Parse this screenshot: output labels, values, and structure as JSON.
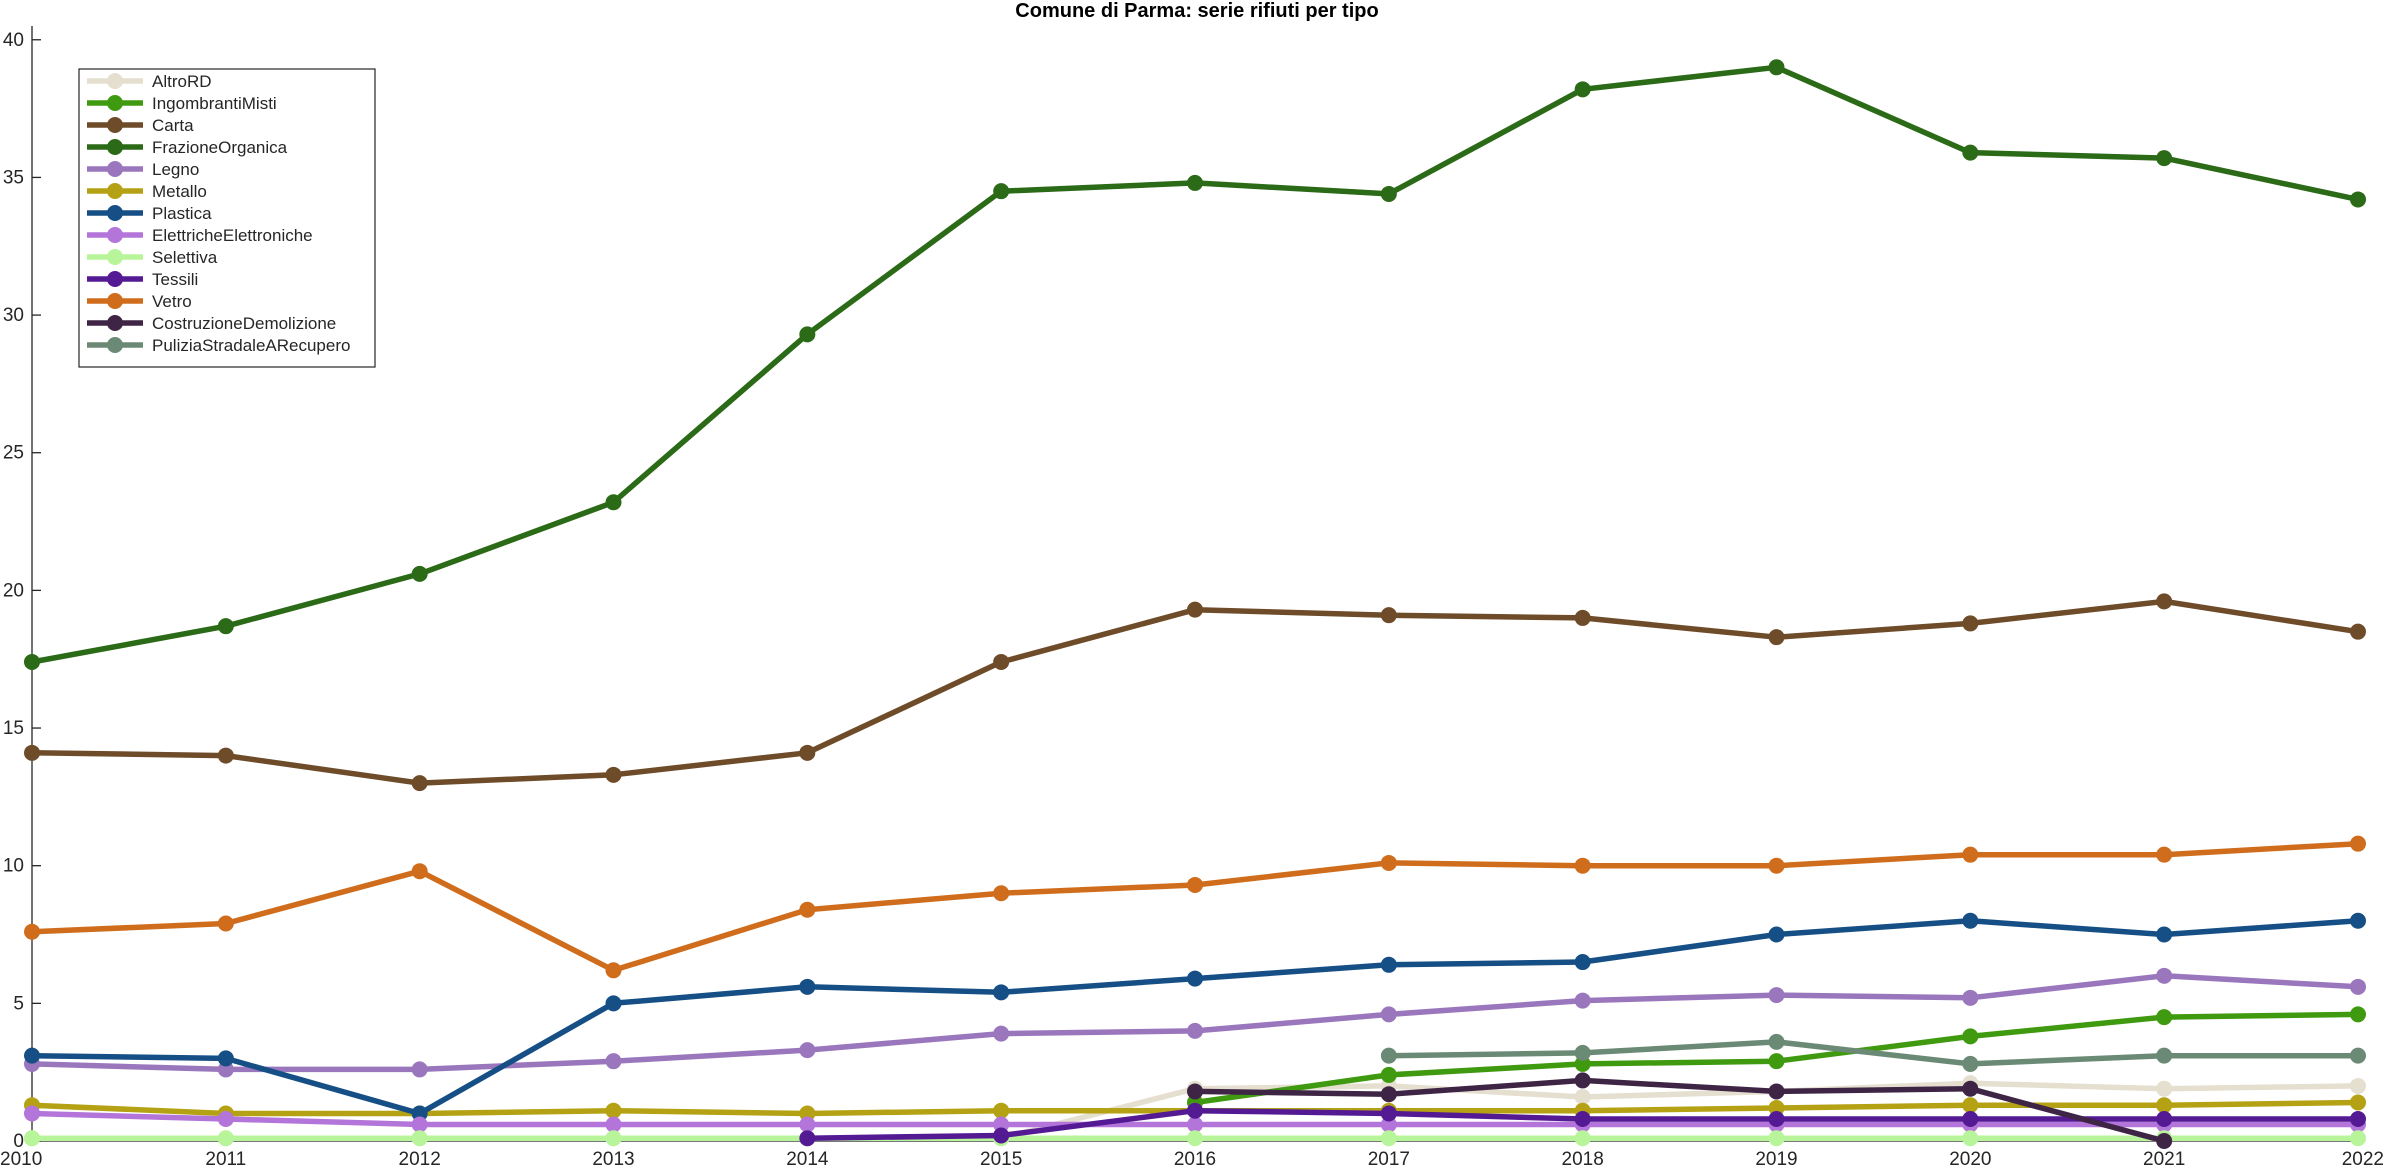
{
  "chart_data": {
    "type": "line",
    "title": "Comune di Parma: serie rifiuti per tipo",
    "xlabel": "",
    "ylabel": "",
    "x": [
      2010,
      2011,
      2012,
      2013,
      2014,
      2015,
      2016,
      2017,
      2018,
      2019,
      2020,
      2021,
      2022
    ],
    "x_tick_labels": [
      "2010",
      "2011",
      "2012",
      "2013",
      "2014",
      "2015",
      "2016",
      "2017",
      "2018",
      "2019",
      "2020",
      "2021",
      "2022"
    ],
    "y_ticks": [
      0,
      5,
      10,
      15,
      20,
      25,
      30,
      35,
      40
    ],
    "y_tick_labels": [
      "0",
      "5",
      "10",
      "15",
      "20",
      "25",
      "30",
      "35",
      "40"
    ],
    "xlim": [
      2010,
      2022
    ],
    "ylim": [
      0,
      40.5
    ],
    "grid": false,
    "legend_position": "top-left",
    "series": [
      {
        "name": "AltroRD",
        "color": "#e5dfcf",
        "values": [
          0.1,
          0.1,
          0.1,
          0.1,
          0.1,
          0.1,
          1.9,
          2.0,
          1.6,
          1.8,
          2.1,
          1.9,
          2.0
        ]
      },
      {
        "name": "IngombrantiMisti",
        "color": "#3f9a10",
        "values": [
          null,
          null,
          null,
          null,
          null,
          null,
          1.4,
          2.4,
          2.8,
          2.9,
          3.8,
          4.5,
          4.6
        ]
      },
      {
        "name": "Carta",
        "color": "#6e4c2a",
        "values": [
          14.1,
          14.0,
          13.0,
          13.3,
          14.1,
          17.4,
          19.3,
          19.1,
          19.0,
          18.3,
          18.8,
          19.6,
          18.5
        ]
      },
      {
        "name": "FrazioneOrganica",
        "color": "#2b6a16",
        "values": [
          17.4,
          18.7,
          20.6,
          23.2,
          29.3,
          34.5,
          34.8,
          34.4,
          38.2,
          39.0,
          35.9,
          35.7,
          34.2
        ]
      },
      {
        "name": "Legno",
        "color": "#9a77bd",
        "values": [
          2.8,
          2.6,
          2.6,
          2.9,
          3.3,
          3.9,
          4.0,
          4.6,
          5.1,
          5.3,
          5.2,
          6.0,
          5.6
        ]
      },
      {
        "name": "Metallo",
        "color": "#b5a214",
        "values": [
          1.3,
          1.0,
          1.0,
          1.1,
          1.0,
          1.1,
          1.1,
          1.1,
          1.1,
          1.2,
          1.3,
          1.3,
          1.4
        ]
      },
      {
        "name": "Plastica",
        "color": "#164f85",
        "values": [
          3.1,
          3.0,
          1.0,
          5.0,
          5.6,
          5.4,
          5.9,
          6.4,
          6.5,
          7.5,
          8.0,
          7.5,
          8.0
        ]
      },
      {
        "name": "ElettricheElettroniche",
        "color": "#b375da",
        "values": [
          1.0,
          0.8,
          0.6,
          0.6,
          0.6,
          0.6,
          0.6,
          0.6,
          0.6,
          0.6,
          0.6,
          0.6,
          0.6
        ]
      },
      {
        "name": "Selettiva",
        "color": "#b8f59a",
        "values": [
          0.1,
          0.1,
          0.1,
          0.1,
          0.1,
          0.1,
          0.1,
          0.1,
          0.1,
          0.1,
          0.1,
          0.1,
          0.1
        ]
      },
      {
        "name": "Tessili",
        "color": "#541a94",
        "values": [
          null,
          null,
          null,
          null,
          0.1,
          0.2,
          1.1,
          1.0,
          0.8,
          0.8,
          0.8,
          0.8,
          0.8
        ]
      },
      {
        "name": "Vetro",
        "color": "#d06d1d",
        "values": [
          7.6,
          7.9,
          9.8,
          6.2,
          8.4,
          9.0,
          9.3,
          10.1,
          10.0,
          10.0,
          10.4,
          10.4,
          10.8
        ]
      },
      {
        "name": "CostruzioneDemolizione",
        "color": "#3f2545",
        "values": [
          null,
          null,
          null,
          null,
          null,
          null,
          1.8,
          1.7,
          2.2,
          1.8,
          1.9,
          0.0,
          null
        ]
      },
      {
        "name": "PuliziaStradaleARecupero",
        "color": "#6b8a76",
        "values": [
          null,
          null,
          null,
          null,
          null,
          null,
          null,
          3.1,
          3.2,
          3.6,
          2.8,
          3.1,
          3.1
        ]
      }
    ]
  }
}
